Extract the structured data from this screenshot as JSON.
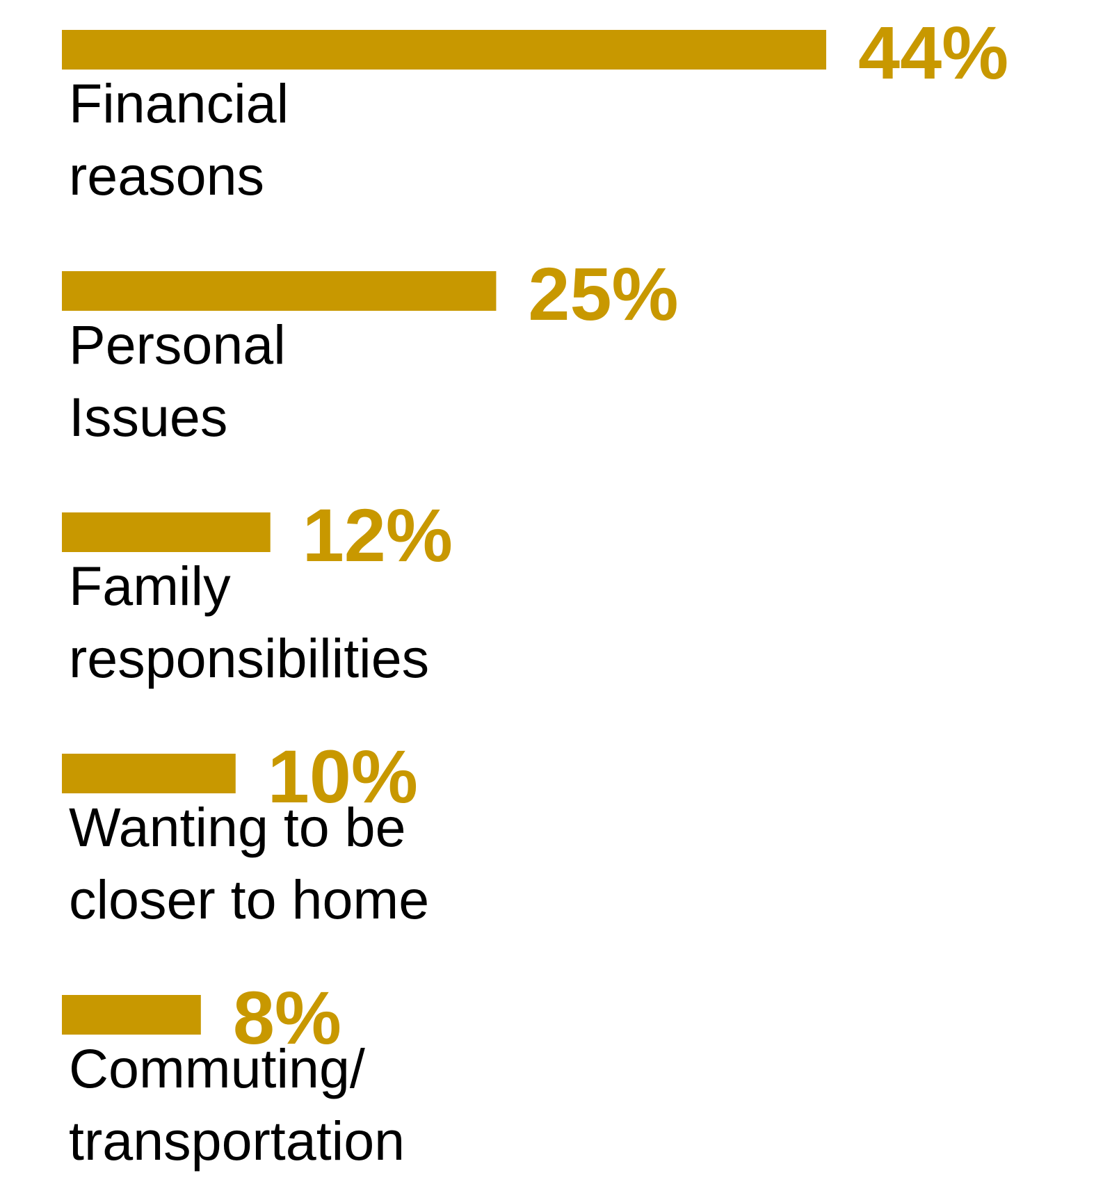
{
  "chart_data": {
    "type": "bar",
    "orientation": "horizontal",
    "categories": [
      [
        "Financial",
        "reasons"
      ],
      [
        "Personal",
        "Issues"
      ],
      [
        "Family",
        "responsibilities"
      ],
      [
        "Wanting to be",
        "closer to home"
      ],
      [
        "Commuting/",
        "transportation"
      ]
    ],
    "values": [
      44,
      25,
      12,
      10,
      8
    ],
    "data_labels": [
      "44%",
      "25%",
      "12%",
      "10%",
      "8%"
    ],
    "title": "",
    "xlabel": "",
    "ylabel": "",
    "xlim": [
      0,
      44
    ],
    "grid": false,
    "legend": "none",
    "colors": {
      "bar": "#C89800",
      "data_label": "#C89800",
      "category_label": "#000000"
    }
  }
}
